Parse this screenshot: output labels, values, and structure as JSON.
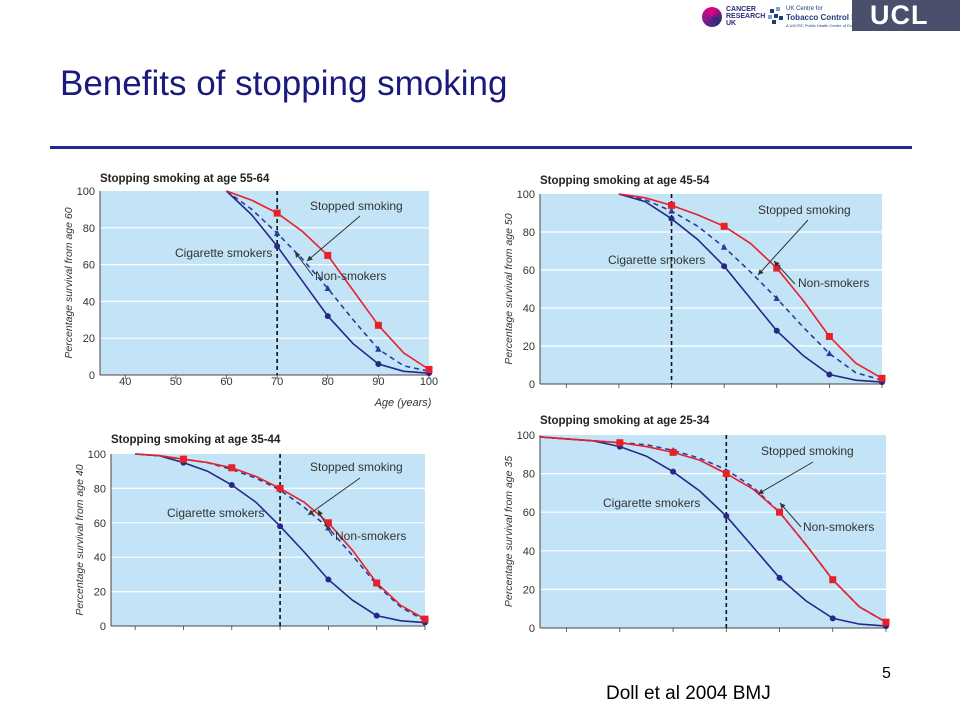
{
  "header": {
    "title": "Benefits of stopping smoking",
    "logos": {
      "cancer_research": [
        "CANCER",
        "RESEARCH",
        "UK"
      ],
      "tobacco": {
        "line1": "UK Centre for",
        "line2": "Tobacco Control Studies",
        "line3": "A UKCRC Public Health Centre of Excellence"
      },
      "ucl": "UCL"
    }
  },
  "footer": {
    "page_number": "5",
    "citation": "Doll et al 2004 BMJ"
  },
  "colors": {
    "plot_bg": "#c3e4f6",
    "stopped": "#e8202a",
    "smokers": "#27278a",
    "non_smokers": "#2a3c9e"
  },
  "chart_data": [
    {
      "type": "line",
      "title": "Stopping smoking at age 55-64",
      "ylabel": "Percentage survival from age 60",
      "xlabel": "Age (years)",
      "xticks": [
        "40",
        "50",
        "60",
        "70",
        "80",
        "90",
        "100"
      ],
      "yticks": [
        "0",
        "20",
        "40",
        "60",
        "80",
        "100"
      ],
      "xlim": [
        35,
        100
      ],
      "ylim": [
        0,
        100
      ],
      "stop_age": 70,
      "labels": {
        "stopped": "Stopped smoking",
        "smokers": "Cigarette smokers",
        "non": "Non-smokers"
      },
      "series": [
        {
          "key": "stopped",
          "x": [
            60,
            65,
            70,
            75,
            80,
            85,
            90,
            95,
            100
          ],
          "y": [
            100,
            95,
            88,
            78,
            65,
            46,
            27,
            12,
            3
          ],
          "markers": [
            [
              70,
              88
            ],
            [
              80,
              65
            ],
            [
              90,
              27
            ],
            [
              100,
              3
            ]
          ]
        },
        {
          "key": "non",
          "x": [
            60,
            65,
            70,
            75,
            80,
            85,
            90,
            95,
            100
          ],
          "y": [
            100,
            90,
            77,
            63,
            47,
            30,
            14,
            5,
            2
          ],
          "markers": [
            [
              70,
              77
            ],
            [
              80,
              47
            ],
            [
              90,
              14
            ],
            [
              100,
              2
            ]
          ]
        },
        {
          "key": "smokers",
          "x": [
            60,
            65,
            70,
            75,
            80,
            85,
            90,
            95,
            100
          ],
          "y": [
            100,
            87,
            70,
            51,
            32,
            17,
            6,
            2,
            1
          ],
          "markers": [
            [
              70,
              70
            ],
            [
              80,
              32
            ],
            [
              90,
              6
            ],
            [
              100,
              1
            ]
          ]
        }
      ]
    },
    {
      "type": "line",
      "title": "Stopping smoking at age 45-54",
      "ylabel": "Percentage survival from age 50",
      "xlabel": "",
      "xticks": [],
      "yticks": [
        "0",
        "20",
        "40",
        "60",
        "80",
        "100"
      ],
      "xlim": [
        35,
        100
      ],
      "ylim": [
        0,
        100
      ],
      "stop_age": 60,
      "labels": {
        "stopped": "Stopped smoking",
        "smokers": "Cigarette smokers",
        "non": "Non-smokers"
      },
      "series": [
        {
          "key": "stopped",
          "x": [
            50,
            55,
            60,
            65,
            70,
            75,
            80,
            85,
            90,
            95,
            100
          ],
          "y": [
            100,
            98,
            94,
            89,
            83,
            74,
            61,
            44,
            25,
            11,
            3
          ],
          "markers": [
            [
              60,
              94
            ],
            [
              70,
              83
            ],
            [
              80,
              61
            ],
            [
              90,
              25
            ],
            [
              100,
              3
            ]
          ]
        },
        {
          "key": "non",
          "x": [
            50,
            55,
            60,
            65,
            70,
            75,
            80,
            85,
            90,
            95,
            100
          ],
          "y": [
            100,
            97,
            91,
            83,
            72,
            59,
            45,
            30,
            16,
            6,
            2
          ],
          "markers": [
            [
              60,
              91
            ],
            [
              70,
              72
            ],
            [
              80,
              45
            ],
            [
              90,
              16
            ],
            [
              100,
              2
            ]
          ]
        },
        {
          "key": "smokers",
          "x": [
            50,
            55,
            60,
            65,
            70,
            75,
            80,
            85,
            90,
            95,
            100
          ],
          "y": [
            100,
            96,
            87,
            76,
            62,
            45,
            28,
            15,
            5,
            2,
            1
          ],
          "markers": [
            [
              60,
              87
            ],
            [
              70,
              62
            ],
            [
              80,
              28
            ],
            [
              90,
              5
            ],
            [
              100,
              1
            ]
          ]
        }
      ]
    },
    {
      "type": "line",
      "title": "Stopping smoking at age 35-44",
      "ylabel": "Percentage survival from age 40",
      "xlabel": "",
      "xticks": [],
      "yticks": [
        "0",
        "20",
        "40",
        "60",
        "80",
        "100"
      ],
      "xlim": [
        35,
        100
      ],
      "ylim": [
        0,
        100
      ],
      "stop_age": 70,
      "labels": {
        "stopped": "Stopped smoking",
        "smokers": "Cigarette smokers",
        "non": "Non-smokers"
      },
      "series": [
        {
          "key": "stopped",
          "x": [
            40,
            45,
            50,
            55,
            60,
            65,
            70,
            75,
            80,
            85,
            90,
            95,
            100
          ],
          "y": [
            100,
            99,
            97,
            95,
            92,
            87,
            80,
            72,
            60,
            44,
            25,
            12,
            4
          ],
          "markers": [
            [
              50,
              97
            ],
            [
              60,
              92
            ],
            [
              70,
              80
            ],
            [
              80,
              60
            ],
            [
              90,
              25
            ],
            [
              100,
              4
            ]
          ]
        },
        {
          "key": "non",
          "x": [
            40,
            45,
            50,
            55,
            60,
            65,
            70,
            75,
            80,
            85,
            90,
            95,
            100
          ],
          "y": [
            100,
            99,
            97,
            95,
            91,
            86,
            79,
            69,
            57,
            41,
            24,
            11,
            3
          ],
          "markers": [
            [
              80,
              57
            ],
            [
              100,
              3
            ]
          ]
        },
        {
          "key": "smokers",
          "x": [
            40,
            45,
            50,
            55,
            60,
            65,
            70,
            75,
            80,
            85,
            90,
            95,
            100
          ],
          "y": [
            100,
            99,
            95,
            90,
            82,
            72,
            58,
            43,
            27,
            15,
            6,
            3,
            2
          ],
          "markers": [
            [
              50,
              95
            ],
            [
              60,
              82
            ],
            [
              70,
              58
            ],
            [
              80,
              27
            ],
            [
              90,
              6
            ],
            [
              100,
              2
            ]
          ]
        }
      ]
    },
    {
      "type": "line",
      "title": "Stopping smoking at age 25-34",
      "ylabel": "Percentage survival from age 35",
      "xlabel": "",
      "xticks": [],
      "yticks": [
        "0",
        "20",
        "40",
        "60",
        "80",
        "100"
      ],
      "xlim": [
        35,
        100
      ],
      "ylim": [
        0,
        100
      ],
      "stop_age": 70,
      "labels": {
        "stopped": "Stopped smoking",
        "smokers": "Cigarette smokers",
        "non": "Non-smokers"
      },
      "series": [
        {
          "key": "stopped",
          "x": [
            35,
            40,
            45,
            50,
            55,
            60,
            65,
            70,
            75,
            80,
            85,
            90,
            95,
            100
          ],
          "y": [
            99,
            98,
            97,
            96,
            94,
            91,
            87,
            80,
            72,
            60,
            43,
            25,
            11,
            3
          ],
          "markers": [
            [
              50,
              96
            ],
            [
              60,
              91
            ],
            [
              70,
              80
            ],
            [
              80,
              60
            ],
            [
              90,
              25
            ],
            [
              100,
              3
            ]
          ]
        },
        {
          "key": "non",
          "x": [
            35,
            40,
            45,
            50,
            55,
            60,
            65,
            70,
            75,
            80,
            85,
            90,
            95,
            100
          ],
          "y": [
            99,
            98,
            97,
            96,
            95,
            92,
            88,
            82,
            73,
            60,
            43,
            25,
            11,
            3
          ],
          "markers": [
            [
              60,
              92
            ],
            [
              80,
              60
            ]
          ]
        },
        {
          "key": "smokers",
          "x": [
            35,
            40,
            45,
            50,
            55,
            60,
            65,
            70,
            75,
            80,
            85,
            90,
            95,
            100
          ],
          "y": [
            99,
            98,
            97,
            94,
            89,
            81,
            71,
            58,
            42,
            26,
            14,
            5,
            2,
            1
          ],
          "markers": [
            [
              50,
              94
            ],
            [
              60,
              81
            ],
            [
              70,
              58
            ],
            [
              80,
              26
            ],
            [
              90,
              5
            ],
            [
              100,
              1
            ]
          ]
        }
      ]
    }
  ]
}
